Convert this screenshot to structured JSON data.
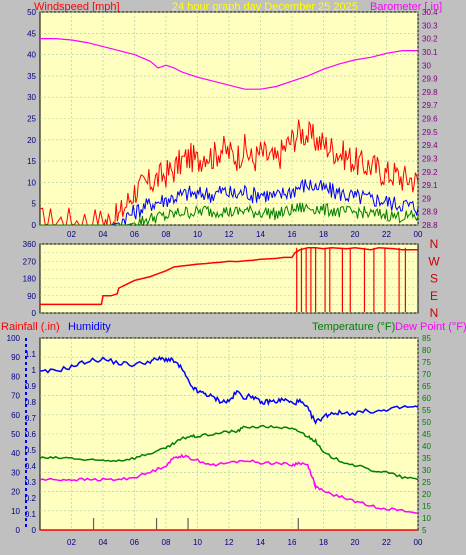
{
  "title": "24 hour graph day   December 25 2025",
  "colors": {
    "background": "#c0c0c0",
    "plot_bg": "#ffffc0",
    "grid": "#a8c8a8",
    "red": "#ff0000",
    "blue": "#0000ff",
    "green": "#008000",
    "magenta": "#ff00ff",
    "darkred": "#cc0000",
    "axis_text_left": "#000080",
    "axis_text_right": "#800080"
  },
  "chart_data": [
    {
      "type": "line",
      "name": "wind",
      "title": "24 hour graph day   December 25 2025",
      "ylabel": "Windspeed [mph]",
      "y2label": "Barometer [.in]",
      "x_ticks": [
        "02",
        "04",
        "06",
        "08",
        "10",
        "12",
        "14",
        "16",
        "18",
        "20",
        "22",
        "00"
      ],
      "ylim": [
        0,
        50
      ],
      "y_ticks": [
        0,
        5,
        10,
        15,
        20,
        25,
        30,
        35,
        40,
        45,
        50
      ],
      "y2lim": [
        28.8,
        30.4
      ],
      "y2_ticks": [
        "28.8",
        "28.9",
        "29",
        "29.1",
        "29.2",
        "29.3",
        "29.4",
        "29.5",
        "29.6",
        "29.7",
        "29.8",
        "29.9",
        "30",
        "30.1",
        "30.2",
        "30.3",
        "30.4"
      ],
      "grid": true,
      "series": [
        {
          "name": "Windspeed gust",
          "color": "red",
          "axis": "left",
          "x": [
            0,
            1,
            2,
            3,
            4,
            4.5,
            5,
            5.5,
            6,
            6.5,
            7,
            7.5,
            8,
            8.5,
            9,
            9.5,
            10,
            10.5,
            11,
            11.5,
            12,
            12.5,
            13,
            13.5,
            14,
            14.5,
            15,
            15.5,
            16,
            16.5,
            17,
            17.5,
            18,
            18.5,
            19,
            19.5,
            20,
            20.5,
            21,
            21.5,
            22,
            22.5,
            23,
            23.5,
            24
          ],
          "y": [
            1,
            1,
            1,
            1,
            1,
            1,
            2,
            5,
            8,
            9,
            10,
            11,
            12,
            13,
            15,
            16,
            15,
            17,
            16,
            18,
            17,
            16,
            18,
            15,
            17,
            16,
            15,
            18,
            20,
            22,
            21,
            20,
            19,
            18,
            17,
            16,
            15,
            14,
            14,
            13,
            12,
            12,
            11,
            11,
            10
          ]
        },
        {
          "name": "Windspeed average",
          "color": "blue",
          "axis": "left",
          "x": [
            0,
            4,
            4.5,
            5,
            5.5,
            6,
            6.5,
            7,
            7.5,
            8,
            8.5,
            9,
            9.5,
            10,
            10.5,
            11,
            11.5,
            12,
            12.5,
            13,
            13.5,
            14,
            14.5,
            15,
            15.5,
            16,
            16.5,
            17,
            17.5,
            18,
            18.5,
            19,
            19.5,
            20,
            20.5,
            21,
            21.5,
            22,
            22.5,
            23,
            23.5,
            24
          ],
          "y": [
            0,
            0,
            0,
            0.5,
            2,
            3,
            4,
            5,
            5.5,
            6,
            6.5,
            7,
            7.5,
            7,
            7.5,
            7,
            8,
            7.5,
            7,
            8,
            7,
            7.5,
            7,
            6.5,
            7.5,
            8,
            9,
            9.5,
            9,
            8.5,
            8,
            7.5,
            7,
            6.5,
            6.5,
            6,
            6,
            5.5,
            5,
            5,
            4.5,
            4
          ]
        },
        {
          "name": "Windspeed minimum",
          "color": "green",
          "axis": "left",
          "x": [
            0,
            5,
            5.5,
            6,
            6.5,
            7,
            7.5,
            8,
            8.5,
            9,
            9.5,
            10,
            10.5,
            11,
            11.5,
            12,
            12.5,
            13,
            13.5,
            14,
            14.5,
            15,
            15.5,
            16,
            16.5,
            17,
            17.5,
            18,
            18.5,
            19,
            19.5,
            20,
            20.5,
            21,
            21.5,
            22,
            22.5,
            23,
            23.5,
            24
          ],
          "y": [
            0,
            0,
            0,
            0.5,
            1,
            1.5,
            2,
            2,
            2.5,
            3,
            3,
            3,
            3.5,
            3,
            3.5,
            3,
            3,
            3.5,
            3,
            3,
            3,
            2.5,
            3,
            3.5,
            4,
            4,
            4,
            3.5,
            3.5,
            3,
            3,
            3,
            3,
            2.5,
            2.5,
            2.5,
            2,
            2,
            2,
            2
          ]
        },
        {
          "name": "Barometer",
          "color": "magenta",
          "axis": "right",
          "x": [
            0,
            1,
            2,
            3,
            4,
            5,
            6,
            7,
            7.5,
            8,
            8.5,
            9,
            9.5,
            10,
            11,
            12,
            13,
            14,
            15,
            16,
            17,
            18,
            19,
            20,
            21,
            22,
            23,
            24
          ],
          "y": [
            30.2,
            30.2,
            30.19,
            30.17,
            30.14,
            30.11,
            30.08,
            30.03,
            29.98,
            30,
            29.98,
            29.95,
            29.93,
            29.91,
            29.88,
            29.85,
            29.82,
            29.82,
            29.84,
            29.88,
            29.92,
            29.97,
            30.01,
            30.04,
            30.06,
            30.09,
            30.11,
            30.11
          ]
        }
      ]
    },
    {
      "type": "scatter",
      "name": "direction",
      "ylim": [
        0,
        360
      ],
      "y_ticks": [
        0,
        45,
        90,
        135,
        180,
        225,
        270,
        315,
        360
      ],
      "right_labels": [
        "N",
        "W",
        "S",
        "E",
        "N"
      ],
      "grid": true,
      "series": [
        {
          "name": "Wind direction",
          "color": "red",
          "x": [
            0,
            1,
            2,
            3,
            3.9,
            4,
            4.5,
            4.9,
            5,
            5.5,
            6,
            6.5,
            7,
            7.5,
            8,
            8.5,
            9,
            9.5,
            10,
            10.5,
            11,
            11.5,
            12,
            12.5,
            13,
            13.5,
            14,
            14.5,
            15,
            15.5,
            16,
            16.2,
            16.5,
            17,
            17.5,
            18,
            18.5,
            19,
            19.5,
            20,
            20.5,
            21,
            21.5,
            22,
            22.5,
            23,
            23.5,
            24
          ],
          "y": [
            45,
            45,
            45,
            45,
            45,
            90,
            90,
            100,
            130,
            150,
            170,
            180,
            190,
            205,
            220,
            240,
            245,
            250,
            255,
            258,
            262,
            265,
            270,
            268,
            272,
            275,
            280,
            282,
            285,
            290,
            290,
            315,
            330,
            340,
            340,
            335,
            340,
            338,
            335,
            340,
            335,
            330,
            340,
            338,
            335,
            330,
            330,
            330
          ]
        }
      ]
    },
    {
      "type": "line",
      "name": "rain-humidity-temperature",
      "ylabel": "Rainfall (.in)",
      "ylabel2": "Humidity",
      "y2label": "Temperature (°F)",
      "y2label2": "Dew Point (°F)",
      "x_ticks": [
        "02",
        "04",
        "06",
        "08",
        "10",
        "12",
        "14",
        "16",
        "18",
        "20",
        "22",
        "00"
      ],
      "humidity_lim": [
        0,
        100
      ],
      "humidity_ticks": [
        0,
        10,
        20,
        30,
        40,
        50,
        60,
        70,
        80,
        90,
        100
      ],
      "rain_lim": [
        0,
        1.2
      ],
      "rain_ticks": [
        "0",
        "0.1",
        "0.2",
        "0.3",
        "0.4",
        "0.5",
        "0.6",
        "0.7",
        "0.8",
        "0.9",
        "1",
        "1.1"
      ],
      "temp_lim": [
        5,
        85
      ],
      "temp_ticks": [
        5,
        10,
        15,
        20,
        25,
        30,
        35,
        40,
        45,
        50,
        55,
        60,
        65,
        70,
        75,
        80,
        85
      ],
      "grid": true,
      "series": [
        {
          "name": "Humidity",
          "color": "blue",
          "axis": "humidity",
          "x": [
            0,
            1,
            2,
            3,
            4,
            5,
            6,
            7,
            7.5,
            8,
            8.5,
            9,
            9.5,
            10,
            10.5,
            11,
            11.5,
            12,
            12.5,
            13,
            13.5,
            14,
            14.5,
            15,
            15.5,
            16,
            16.5,
            17,
            17.5,
            18,
            18.5,
            19,
            20,
            21,
            22,
            23,
            24
          ],
          "y": [
            82,
            83,
            85,
            88,
            89,
            87,
            86,
            88,
            89,
            89,
            88,
            84,
            76,
            72,
            71,
            69,
            67,
            67,
            72,
            69,
            70,
            66,
            67,
            67,
            68,
            66,
            67,
            63,
            56,
            59,
            61,
            61,
            61,
            62,
            62,
            64,
            64
          ]
        },
        {
          "name": "Temperature",
          "color": "green",
          "axis": "temp",
          "x": [
            0,
            1,
            2,
            3,
            4,
            5,
            6,
            7,
            8,
            8.5,
            9,
            9.5,
            10,
            11,
            12,
            12.5,
            13,
            14,
            15,
            16,
            16.5,
            17,
            17.5,
            18,
            19,
            20,
            21,
            22,
            23,
            24
          ],
          "y": [
            35,
            35,
            35,
            34,
            34,
            34,
            35,
            37,
            39,
            41,
            43,
            44,
            44,
            45,
            46,
            46,
            48,
            48,
            48,
            47,
            46,
            44,
            42,
            37,
            34,
            32,
            30,
            29,
            27,
            26
          ]
        },
        {
          "name": "Dew Point",
          "color": "magenta",
          "axis": "temp",
          "x": [
            0,
            1,
            2,
            3,
            4,
            5,
            6,
            7,
            8,
            8.5,
            9,
            9.5,
            10,
            11,
            12,
            13,
            14,
            15,
            16,
            16.5,
            17,
            17.3,
            17.5,
            18,
            19,
            20,
            21,
            22,
            23,
            24
          ],
          "y": [
            26,
            26,
            26,
            26,
            26,
            26,
            27,
            29,
            32,
            35,
            36,
            35,
            34,
            32,
            33,
            34,
            33,
            33,
            32,
            33,
            32,
            27,
            23,
            21,
            19,
            17,
            15,
            14,
            13,
            12
          ]
        },
        {
          "name": "Rainfall",
          "color": "red",
          "axis": "rain",
          "x": [
            0,
            24
          ],
          "y": [
            0,
            0
          ]
        }
      ]
    }
  ]
}
